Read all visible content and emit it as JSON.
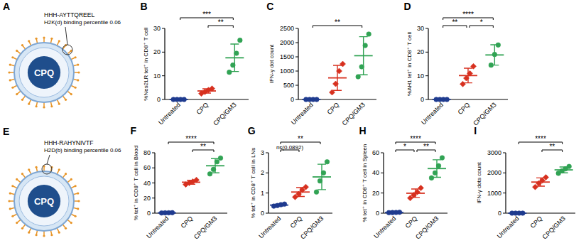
{
  "chart_data": [
    {
      "type": "scatter",
      "title": "B",
      "ylabel": "%Nes2LR tet⁺ in CD8⁺ T cell",
      "ylim": [
        0,
        30
      ],
      "yticks": [
        0,
        10,
        20,
        30
      ],
      "series": [
        {
          "name": "Untreated",
          "color": "#1f3b8f",
          "marker": "circle",
          "values": [
            0,
            0,
            0,
            0
          ],
          "mean": 0,
          "sd": 0
        },
        {
          "name": "CPQ",
          "color": "#d7301f",
          "marker": "diamond",
          "values": [
            2.5,
            3.2,
            4.0,
            4.6
          ],
          "mean": 3.6,
          "sd": 0.9
        },
        {
          "name": "CPQ/GM3",
          "color": "#31a354",
          "marker": "circle",
          "values": [
            11.5,
            14.5,
            19.5,
            25.0
          ],
          "mean": 17.6,
          "sd": 5.8
        }
      ],
      "annotations": [
        {
          "from": 0,
          "to": 2,
          "label": "***"
        },
        {
          "from": 1,
          "to": 2,
          "label": "**"
        }
      ]
    },
    {
      "type": "scatter",
      "title": "C",
      "ylabel": "IFN-γ dot count",
      "ylim": [
        0,
        2500
      ],
      "yticks": [
        0,
        500,
        1000,
        1500,
        2000,
        2500
      ],
      "series": [
        {
          "name": "Untreated",
          "color": "#1f3b8f",
          "marker": "circle",
          "values": [
            0,
            0,
            0,
            0
          ],
          "mean": 0,
          "sd": 0
        },
        {
          "name": "CPQ",
          "color": "#d7301f",
          "marker": "diamond",
          "values": [
            250,
            550,
            1000,
            1250
          ],
          "mean": 760,
          "sd": 440
        },
        {
          "name": "CPQ/GM3",
          "color": "#31a354",
          "marker": "circle",
          "values": [
            800,
            1150,
            1900,
            2300
          ],
          "mean": 1540,
          "sd": 670
        }
      ],
      "annotations": [
        {
          "from": 0,
          "to": 2,
          "label": "**"
        }
      ]
    },
    {
      "type": "scatter",
      "title": "D",
      "ylabel": "%AH1 tet⁺ in CD8⁺ T cell",
      "ylim": [
        0,
        30
      ],
      "yticks": [
        0,
        10,
        20,
        30
      ],
      "series": [
        {
          "name": "Untreated",
          "color": "#1f3b8f",
          "marker": "circle",
          "values": [
            0,
            0,
            0,
            0
          ],
          "mean": 0,
          "sd": 0
        },
        {
          "name": "CPQ",
          "color": "#d7301f",
          "marker": "diamond",
          "values": [
            6.5,
            9.0,
            11.0,
            14.0
          ],
          "mean": 10.1,
          "sd": 3.1
        },
        {
          "name": "CPQ/GM3",
          "color": "#31a354",
          "marker": "circle",
          "values": [
            14.5,
            19.0,
            23.0
          ],
          "mean": 18.8,
          "sd": 4.3
        }
      ],
      "annotations": [
        {
          "from": 0,
          "to": 2,
          "label": "****"
        },
        {
          "from": 0,
          "to": 1,
          "label": "**"
        },
        {
          "from": 1,
          "to": 2,
          "label": "*"
        }
      ]
    },
    {
      "type": "scatter",
      "title": "F",
      "ylabel": "% tet⁺ in CD8⁺ T cell in Blood",
      "ylim": [
        0,
        80
      ],
      "yticks": [
        0,
        20,
        40,
        60,
        80
      ],
      "series": [
        {
          "name": "Untreated",
          "color": "#1f3b8f",
          "marker": "circle",
          "values": [
            0.3,
            0.4,
            0.5,
            0.6
          ],
          "mean": 0.45,
          "sd": 0.13
        },
        {
          "name": "CPQ",
          "color": "#d7301f",
          "marker": "diamond",
          "values": [
            38,
            40,
            42,
            44
          ],
          "mean": 41,
          "sd": 2.6
        },
        {
          "name": "CPQ/GM3",
          "color": "#31a354",
          "marker": "circle",
          "values": [
            52,
            58,
            68,
            73
          ],
          "mean": 62.8,
          "sd": 9.4
        }
      ],
      "annotations": [
        {
          "from": 0,
          "to": 2,
          "label": "****"
        },
        {
          "from": 1,
          "to": 2,
          "label": "**"
        }
      ]
    },
    {
      "type": "scatter",
      "title": "G",
      "ylabel": "% tet⁺ in CD8⁺ T cell in LNs",
      "ylim": [
        0,
        3
      ],
      "yticks": [
        0,
        1,
        2,
        3
      ],
      "series": [
        {
          "name": "Untreated",
          "color": "#1f3b8f",
          "marker": "circle",
          "values": [
            0.35,
            0.38,
            0.42,
            0.45
          ],
          "mean": 0.4,
          "sd": 0.04
        },
        {
          "name": "CPQ",
          "color": "#d7301f",
          "marker": "diamond",
          "values": [
            0.8,
            0.95,
            1.15,
            1.3
          ],
          "mean": 1.05,
          "sd": 0.22
        },
        {
          "name": "CPQ/GM3",
          "color": "#31a354",
          "marker": "circle",
          "values": [
            1.05,
            1.6,
            2.0,
            2.55
          ],
          "mean": 1.8,
          "sd": 0.63
        }
      ],
      "annotations": [
        {
          "from": 0,
          "to": 1,
          "label": "ns(0.0892)"
        },
        {
          "from": 0,
          "to": 2,
          "label": "**"
        }
      ]
    },
    {
      "type": "scatter",
      "title": "H",
      "ylabel": "% tet⁺ in CD8⁺ T cell in Spleen",
      "ylim": [
        0,
        60
      ],
      "yticks": [
        0,
        20,
        40,
        60
      ],
      "series": [
        {
          "name": "Untreated",
          "color": "#1f3b8f",
          "marker": "circle",
          "values": [
            0.5,
            0.6,
            0.7,
            0.9
          ],
          "mean": 0.7,
          "sd": 0.2
        },
        {
          "name": "CPQ",
          "color": "#d7301f",
          "marker": "diamond",
          "values": [
            15,
            18,
            21,
            25
          ],
          "mean": 19.8,
          "sd": 4.2
        },
        {
          "name": "CPQ/GM3",
          "color": "#31a354",
          "marker": "circle",
          "values": [
            35,
            40,
            47,
            55
          ],
          "mean": 44.3,
          "sd": 8.7
        }
      ],
      "annotations": [
        {
          "from": 0,
          "to": 2,
          "label": "****"
        },
        {
          "from": 0,
          "to": 1,
          "label": "*"
        },
        {
          "from": 1,
          "to": 2,
          "label": "**"
        }
      ]
    },
    {
      "type": "scatter",
      "title": "I",
      "ylabel": "IFN-γ dots count",
      "ylim": [
        0,
        3000
      ],
      "yticks": [
        0,
        1000,
        2000,
        3000
      ],
      "series": [
        {
          "name": "Untreated",
          "color": "#1f3b8f",
          "marker": "circle",
          "values": [
            0,
            0,
            0,
            0
          ],
          "mean": 0,
          "sd": 0
        },
        {
          "name": "CPQ",
          "color": "#d7301f",
          "marker": "diamond",
          "values": [
            1300,
            1480,
            1620,
            1780
          ],
          "mean": 1545,
          "sd": 205
        },
        {
          "name": "CPQ/GM3",
          "color": "#31a354",
          "marker": "circle",
          "values": [
            1980,
            2100,
            2200,
            2320
          ],
          "mean": 2150,
          "sd": 145
        }
      ],
      "annotations": [
        {
          "from": 0,
          "to": 2,
          "label": "****"
        },
        {
          "from": 1,
          "to": 2,
          "label": "**"
        }
      ]
    }
  ],
  "schematics": [
    {
      "title": "A",
      "particle": "CPQ",
      "peptide": "HHH-AYTTQREEL",
      "binding": "H2K(d) binding percentile 0.06"
    },
    {
      "title": "E",
      "particle": "CPQ",
      "peptide": "HHH-RAHYNIVTF",
      "binding": "H2D(b) binding percentile 0.06"
    }
  ]
}
